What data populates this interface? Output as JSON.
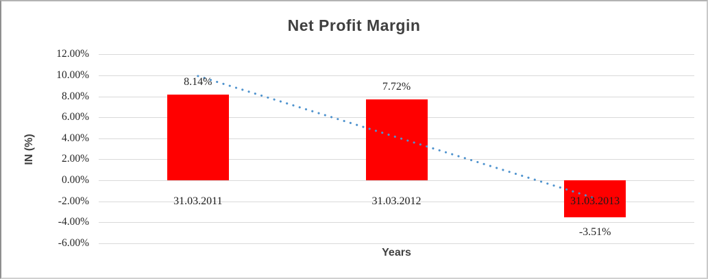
{
  "window": {
    "background": "#ffffff",
    "border_color": "#8f8f8f"
  },
  "chart_data": {
    "type": "bar",
    "title": "Net Profit Margin",
    "xlabel": "Years",
    "ylabel": "IN (%)",
    "categories": [
      "31.03.2011",
      "31.03.2012",
      "31.03.2013"
    ],
    "series": [
      {
        "name": "Net Profit Margin",
        "values": [
          8.14,
          7.72,
          -3.51
        ],
        "data_labels": [
          "8.14%",
          "7.72%",
          "-3.51%"
        ],
        "color": "#ff0000"
      }
    ],
    "y_ticks": [
      {
        "value": 12,
        "label": "12.00%"
      },
      {
        "value": 10,
        "label": "10.00%"
      },
      {
        "value": 8,
        "label": "8.00%"
      },
      {
        "value": 6,
        "label": "6.00%"
      },
      {
        "value": 4,
        "label": "4.00%"
      },
      {
        "value": 2,
        "label": "2.00%"
      },
      {
        "value": 0,
        "label": "0.00%"
      },
      {
        "value": -2,
        "label": "-2.00%"
      },
      {
        "value": -4,
        "label": "-4.00%"
      },
      {
        "value": -6,
        "label": "-6.00%"
      }
    ],
    "ylim": [
      -6,
      12
    ],
    "grid": true,
    "legend_position": "none",
    "trendline": {
      "style": "dotted",
      "color": "#4f93ce",
      "start_category_index": 0,
      "end_category_index": 2,
      "start_value": 9.94,
      "end_value": -1.71
    },
    "colors": {
      "bar": "#ff0000",
      "trendline": "#4f93ce",
      "gridline": "#d9d9d9",
      "tick_text": "#262626",
      "title_text": "#3f3f3f"
    }
  }
}
